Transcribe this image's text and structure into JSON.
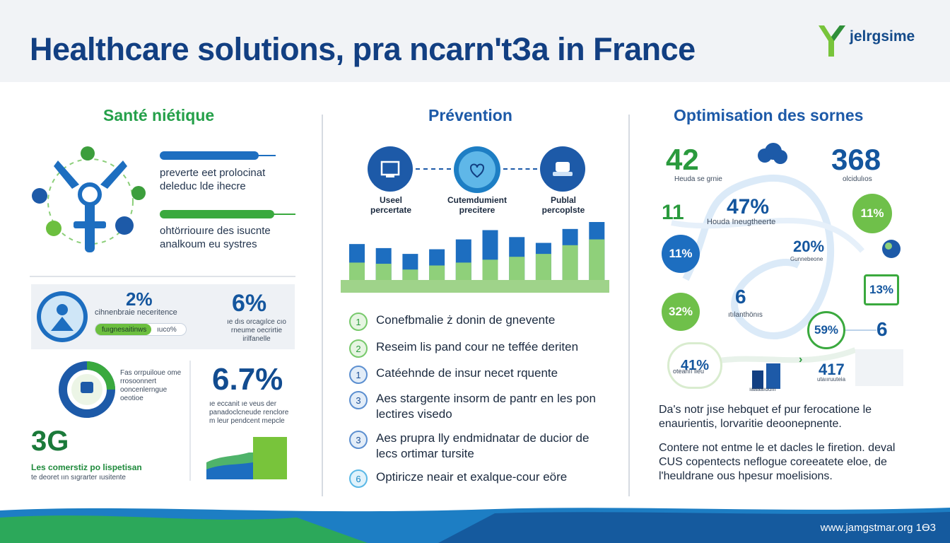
{
  "title": "Healthcare solutions, pra ncarn'tЗa in France",
  "logo": {
    "name": "jelrgsime"
  },
  "colors": {
    "navy": "#123f82",
    "green": "#25a04a",
    "blue": "#1d5aa8",
    "light_green": "#7cc94a"
  },
  "left": {
    "title": "Santé niétique",
    "icons": [
      "satellite-dish-icon",
      "medical-kit-icon",
      "chart-icon",
      "book-icon",
      "hands-icon",
      "doctor-icon"
    ],
    "bar1_text": "preverte eet prolocinat deleduc lde ihecre",
    "bar2_text": "ohtörriouıre des isucnte analkoum eu systres",
    "card": {
      "pct1": "2%",
      "label1": "cihnenbraie neceritence",
      "progress_label": "fuıgnesaitinws",
      "progress_value": "ıuco%",
      "pct2": "6%",
      "pct2_text": "ıe dıs orcagılce cıo rneume oecrirtie irilfanelle",
      "donut_text": "Fas orrpuiloue ome rrosoonnert ooncenlerngue oeotioe",
      "pct3": "6.7%",
      "pct3_text": "ıe eccanit ıe veus der panadoclcneude renclore m leur pendcent mepcle",
      "big_num": "3G",
      "caption1": "Les comerstiz po lispetisan",
      "caption2": "te deoret ıın sıgrarter ıusitente"
    }
  },
  "middle": {
    "title": "Prévention",
    "steps": [
      {
        "label": "Useel percertate",
        "icon": "monitor-icon"
      },
      {
        "label": "Cutemdumient precitere",
        "icon": "heart-hands-icon"
      },
      {
        "label": "Publal percoplste",
        "icon": "pharmacy-icon"
      }
    ],
    "bars": [
      {
        "blue": 0.62,
        "green": 0.3
      },
      {
        "blue": 0.55,
        "green": 0.28
      },
      {
        "blue": 0.45,
        "green": 0.18
      },
      {
        "blue": 0.53,
        "green": 0.25
      },
      {
        "blue": 0.7,
        "green": 0.3
      },
      {
        "blue": 0.86,
        "green": 0.35
      },
      {
        "blue": 0.74,
        "green": 0.4
      },
      {
        "blue": 0.64,
        "green": 0.45
      },
      {
        "blue": 0.88,
        "green": 0.6
      },
      {
        "blue": 1.0,
        "green": 0.7
      }
    ],
    "list": [
      {
        "num": "1",
        "style": "g",
        "text": "Conefbmalie ż donin de gnevente"
      },
      {
        "num": "2",
        "style": "g",
        "text": "Reseim lis pand cour ne teffée deriten"
      },
      {
        "num": "1",
        "style": "b",
        "text": "Catéehnde de insur necet rquente"
      },
      {
        "num": "3",
        "style": "b",
        "text": "Aes stargente insorm de pantr en les pon lectires visedo"
      },
      {
        "num": "3",
        "style": "b",
        "text": "Aes prupra lly endmidnatar de ducior de lecs ortimar tursite"
      },
      {
        "num": "6",
        "style": "c",
        "text": "Optiricze neair et exalque-cour eöre"
      }
    ]
  },
  "right": {
    "title": "Optimisation des sornes",
    "stat1": "42",
    "stat1_label": "Heuda se grnie",
    "stat2": "368",
    "stat2_label": "olcidulıos",
    "stat3": "11",
    "stat4": "47%",
    "stat4_label": "Houda Ineugtheerte",
    "circ1": "11%",
    "circ2": "11%",
    "stat5": "20%",
    "stat5_label": "Gunnebeone",
    "circ3": "13%",
    "circ4": "32%",
    "stat6": "6",
    "stat6_label": "ıtılanthönıs",
    "circ5": "59%",
    "stat7": "6",
    "circ6": "41%",
    "circ6_label": "oteanıı lieu",
    "stat8": "417",
    "stat8_label": "utaııruuteia",
    "building_label": "ıaaaaıuuııı",
    "para1": "Da's notr jıse hebquet ef pur ferocatione le enaurientis, lorvaritie deoonepnente.",
    "para2": "Contere not entme le et dacles le firetion. deval CUS copentects neflogue coreeatete eloe, de l'heuldrane ous hpesur moelisions."
  },
  "footer": {
    "url": "www.jamgstmar.org 1Ө3"
  }
}
